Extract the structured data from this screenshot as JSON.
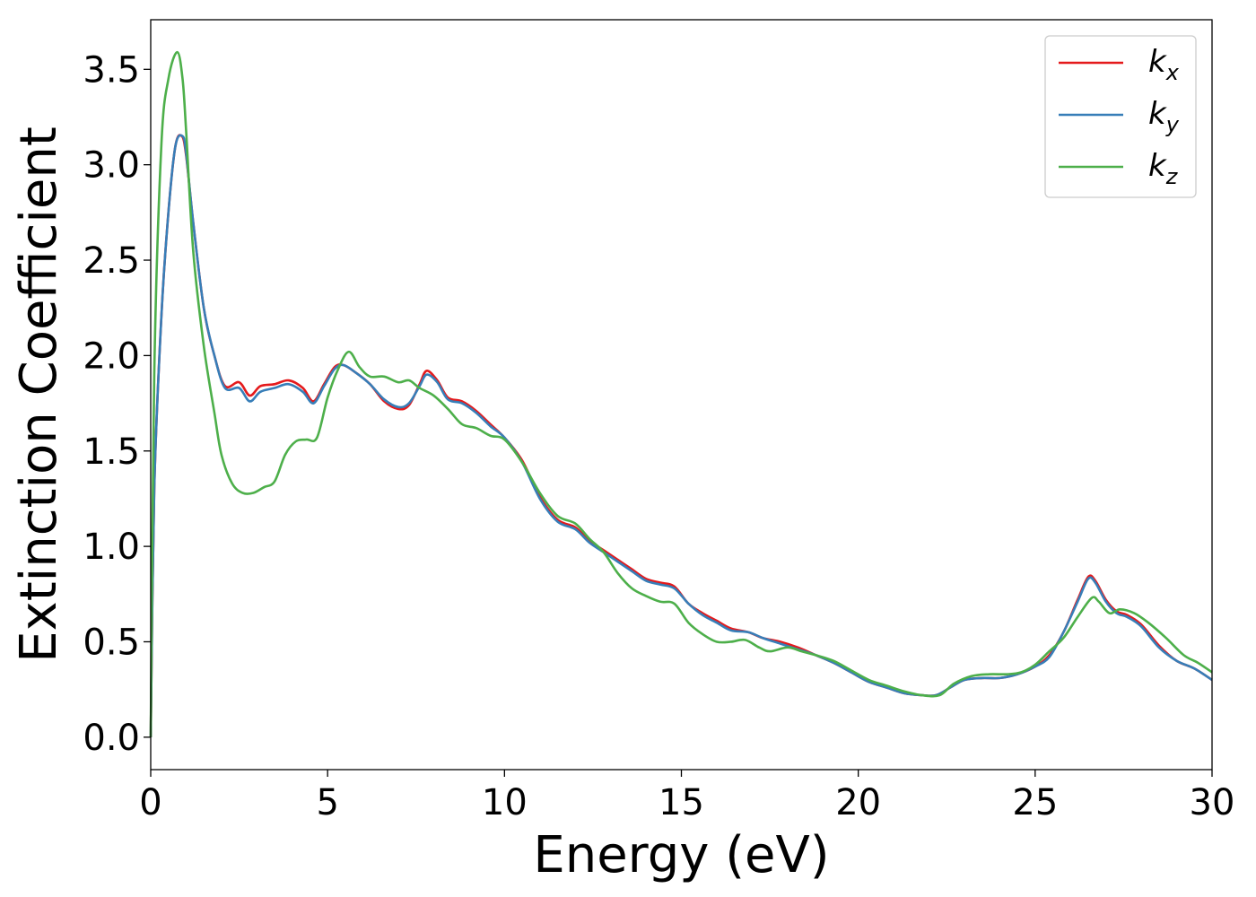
{
  "chart_data": {
    "type": "line",
    "title": "",
    "xlabel": "Energy (eV)",
    "ylabel": "Extinction Coefficient",
    "xlim": [
      0,
      30
    ],
    "ylim": [
      -0.17,
      3.76
    ],
    "xticks": [
      0,
      5,
      10,
      15,
      20,
      25,
      30
    ],
    "xtick_labels": [
      "0",
      "5",
      "10",
      "15",
      "20",
      "25",
      "30"
    ],
    "yticks": [
      0.0,
      0.5,
      1.0,
      1.5,
      2.0,
      2.5,
      3.0,
      3.5
    ],
    "ytick_labels": [
      "0.0",
      "0.5",
      "1.0",
      "1.5",
      "2.0",
      "2.5",
      "3.0",
      "3.5"
    ],
    "grid": false,
    "legend_position": "top-right",
    "series": [
      {
        "name": "k",
        "subscript": "x",
        "color": "#e41a1c",
        "points": [
          [
            0,
            0
          ],
          [
            0.1,
            1.3
          ],
          [
            0.3,
            2.2
          ],
          [
            0.5,
            2.75
          ],
          [
            0.7,
            3.1
          ],
          [
            0.88,
            3.15
          ],
          [
            1.0,
            3.05
          ],
          [
            1.2,
            2.7
          ],
          [
            1.5,
            2.25
          ],
          [
            1.8,
            2.0
          ],
          [
            2.1,
            1.84
          ],
          [
            2.5,
            1.86
          ],
          [
            2.8,
            1.79
          ],
          [
            3.1,
            1.84
          ],
          [
            3.5,
            1.85
          ],
          [
            3.9,
            1.87
          ],
          [
            4.3,
            1.83
          ],
          [
            4.6,
            1.76
          ],
          [
            4.9,
            1.85
          ],
          [
            5.2,
            1.94
          ],
          [
            5.45,
            1.95
          ],
          [
            5.8,
            1.91
          ],
          [
            6.2,
            1.85
          ],
          [
            6.6,
            1.76
          ],
          [
            7.0,
            1.72
          ],
          [
            7.3,
            1.74
          ],
          [
            7.6,
            1.85
          ],
          [
            7.8,
            1.92
          ],
          [
            8.1,
            1.87
          ],
          [
            8.4,
            1.78
          ],
          [
            8.8,
            1.76
          ],
          [
            9.2,
            1.71
          ],
          [
            9.6,
            1.64
          ],
          [
            10.0,
            1.57
          ],
          [
            10.5,
            1.45
          ],
          [
            11.0,
            1.26
          ],
          [
            11.5,
            1.14
          ],
          [
            12.0,
            1.1
          ],
          [
            12.4,
            1.03
          ],
          [
            12.8,
            0.98
          ],
          [
            13.2,
            0.93
          ],
          [
            13.6,
            0.88
          ],
          [
            14.0,
            0.83
          ],
          [
            14.4,
            0.81
          ],
          [
            14.8,
            0.79
          ],
          [
            15.2,
            0.7
          ],
          [
            15.6,
            0.65
          ],
          [
            16.0,
            0.61
          ],
          [
            16.4,
            0.57
          ],
          [
            16.9,
            0.55
          ],
          [
            17.3,
            0.52
          ],
          [
            17.8,
            0.5
          ],
          [
            18.3,
            0.47
          ],
          [
            18.8,
            0.43
          ],
          [
            19.3,
            0.39
          ],
          [
            19.8,
            0.34
          ],
          [
            20.3,
            0.29
          ],
          [
            20.8,
            0.26
          ],
          [
            21.3,
            0.23
          ],
          [
            21.8,
            0.22
          ],
          [
            22.2,
            0.22
          ],
          [
            22.6,
            0.26
          ],
          [
            23.0,
            0.3
          ],
          [
            23.5,
            0.31
          ],
          [
            24.0,
            0.31
          ],
          [
            24.5,
            0.33
          ],
          [
            25.0,
            0.37
          ],
          [
            25.4,
            0.43
          ],
          [
            25.8,
            0.55
          ],
          [
            26.2,
            0.72
          ],
          [
            26.5,
            0.84
          ],
          [
            26.7,
            0.82
          ],
          [
            27.0,
            0.72
          ],
          [
            27.3,
            0.66
          ],
          [
            27.6,
            0.64
          ],
          [
            28.0,
            0.59
          ],
          [
            28.5,
            0.48
          ],
          [
            29.0,
            0.4
          ],
          [
            29.5,
            0.36
          ],
          [
            30.0,
            0.3
          ]
        ]
      },
      {
        "name": "k",
        "subscript": "y",
        "color": "#377eb8",
        "points": [
          [
            0,
            0
          ],
          [
            0.1,
            1.3
          ],
          [
            0.3,
            2.2
          ],
          [
            0.5,
            2.75
          ],
          [
            0.7,
            3.1
          ],
          [
            0.9,
            3.15
          ],
          [
            1.0,
            3.06
          ],
          [
            1.2,
            2.7
          ],
          [
            1.5,
            2.25
          ],
          [
            1.8,
            2.0
          ],
          [
            2.1,
            1.83
          ],
          [
            2.5,
            1.83
          ],
          [
            2.8,
            1.76
          ],
          [
            3.1,
            1.81
          ],
          [
            3.5,
            1.83
          ],
          [
            3.9,
            1.85
          ],
          [
            4.3,
            1.81
          ],
          [
            4.6,
            1.75
          ],
          [
            4.9,
            1.84
          ],
          [
            5.2,
            1.93
          ],
          [
            5.45,
            1.95
          ],
          [
            5.8,
            1.91
          ],
          [
            6.2,
            1.85
          ],
          [
            6.6,
            1.77
          ],
          [
            7.0,
            1.73
          ],
          [
            7.3,
            1.75
          ],
          [
            7.6,
            1.84
          ],
          [
            7.8,
            1.9
          ],
          [
            8.1,
            1.86
          ],
          [
            8.4,
            1.77
          ],
          [
            8.8,
            1.75
          ],
          [
            9.2,
            1.7
          ],
          [
            9.6,
            1.63
          ],
          [
            10.0,
            1.57
          ],
          [
            10.5,
            1.44
          ],
          [
            11.0,
            1.25
          ],
          [
            11.5,
            1.13
          ],
          [
            12.0,
            1.09
          ],
          [
            12.4,
            1.02
          ],
          [
            12.8,
            0.97
          ],
          [
            13.2,
            0.92
          ],
          [
            13.6,
            0.87
          ],
          [
            14.0,
            0.82
          ],
          [
            14.4,
            0.8
          ],
          [
            14.8,
            0.78
          ],
          [
            15.2,
            0.7
          ],
          [
            15.6,
            0.64
          ],
          [
            16.0,
            0.6
          ],
          [
            16.4,
            0.56
          ],
          [
            16.9,
            0.55
          ],
          [
            17.3,
            0.52
          ],
          [
            17.8,
            0.49
          ],
          [
            18.3,
            0.46
          ],
          [
            18.8,
            0.43
          ],
          [
            19.3,
            0.39
          ],
          [
            19.8,
            0.34
          ],
          [
            20.3,
            0.29
          ],
          [
            20.8,
            0.26
          ],
          [
            21.3,
            0.23
          ],
          [
            21.8,
            0.22
          ],
          [
            22.2,
            0.22
          ],
          [
            22.6,
            0.26
          ],
          [
            23.0,
            0.3
          ],
          [
            23.5,
            0.31
          ],
          [
            24.0,
            0.31
          ],
          [
            24.5,
            0.33
          ],
          [
            25.0,
            0.37
          ],
          [
            25.4,
            0.42
          ],
          [
            25.8,
            0.55
          ],
          [
            26.2,
            0.71
          ],
          [
            26.5,
            0.83
          ],
          [
            26.7,
            0.81
          ],
          [
            27.0,
            0.71
          ],
          [
            27.3,
            0.65
          ],
          [
            27.6,
            0.63
          ],
          [
            28.0,
            0.58
          ],
          [
            28.5,
            0.47
          ],
          [
            29.0,
            0.4
          ],
          [
            29.5,
            0.36
          ],
          [
            30.0,
            0.3
          ]
        ]
      },
      {
        "name": "k",
        "subscript": "z",
        "color": "#4daf4a",
        "points": [
          [
            0,
            0
          ],
          [
            0.1,
            1.9
          ],
          [
            0.3,
            3.1
          ],
          [
            0.5,
            3.45
          ],
          [
            0.75,
            3.59
          ],
          [
            0.9,
            3.45
          ],
          [
            1.0,
            3.18
          ],
          [
            1.2,
            2.55
          ],
          [
            1.5,
            2.05
          ],
          [
            1.8,
            1.7
          ],
          [
            2.0,
            1.48
          ],
          [
            2.3,
            1.33
          ],
          [
            2.6,
            1.28
          ],
          [
            2.9,
            1.28
          ],
          [
            3.2,
            1.31
          ],
          [
            3.5,
            1.34
          ],
          [
            3.8,
            1.48
          ],
          [
            4.1,
            1.55
          ],
          [
            4.4,
            1.56
          ],
          [
            4.7,
            1.57
          ],
          [
            5.0,
            1.78
          ],
          [
            5.3,
            1.93
          ],
          [
            5.6,
            2.02
          ],
          [
            5.9,
            1.94
          ],
          [
            6.2,
            1.89
          ],
          [
            6.6,
            1.89
          ],
          [
            7.0,
            1.86
          ],
          [
            7.3,
            1.87
          ],
          [
            7.6,
            1.83
          ],
          [
            8.0,
            1.79
          ],
          [
            8.4,
            1.72
          ],
          [
            8.8,
            1.64
          ],
          [
            9.2,
            1.62
          ],
          [
            9.6,
            1.58
          ],
          [
            10.0,
            1.56
          ],
          [
            10.5,
            1.44
          ],
          [
            11.0,
            1.28
          ],
          [
            11.5,
            1.16
          ],
          [
            12.0,
            1.12
          ],
          [
            12.4,
            1.04
          ],
          [
            12.8,
            0.97
          ],
          [
            13.2,
            0.86
          ],
          [
            13.6,
            0.78
          ],
          [
            14.0,
            0.74
          ],
          [
            14.4,
            0.71
          ],
          [
            14.8,
            0.7
          ],
          [
            15.2,
            0.6
          ],
          [
            15.6,
            0.54
          ],
          [
            16.0,
            0.5
          ],
          [
            16.4,
            0.5
          ],
          [
            16.8,
            0.51
          ],
          [
            17.2,
            0.47
          ],
          [
            17.5,
            0.45
          ],
          [
            18.0,
            0.47
          ],
          [
            18.4,
            0.45
          ],
          [
            18.8,
            0.43
          ],
          [
            19.3,
            0.4
          ],
          [
            19.8,
            0.35
          ],
          [
            20.3,
            0.3
          ],
          [
            20.8,
            0.27
          ],
          [
            21.3,
            0.24
          ],
          [
            21.8,
            0.22
          ],
          [
            22.3,
            0.22
          ],
          [
            22.7,
            0.28
          ],
          [
            23.2,
            0.32
          ],
          [
            23.7,
            0.33
          ],
          [
            24.2,
            0.33
          ],
          [
            24.6,
            0.34
          ],
          [
            25.0,
            0.38
          ],
          [
            25.4,
            0.45
          ],
          [
            25.8,
            0.52
          ],
          [
            26.2,
            0.63
          ],
          [
            26.6,
            0.73
          ],
          [
            26.8,
            0.71
          ],
          [
            27.1,
            0.65
          ],
          [
            27.4,
            0.67
          ],
          [
            27.8,
            0.65
          ],
          [
            28.2,
            0.6
          ],
          [
            28.7,
            0.52
          ],
          [
            29.2,
            0.43
          ],
          [
            29.6,
            0.39
          ],
          [
            30.0,
            0.34
          ]
        ]
      }
    ]
  }
}
